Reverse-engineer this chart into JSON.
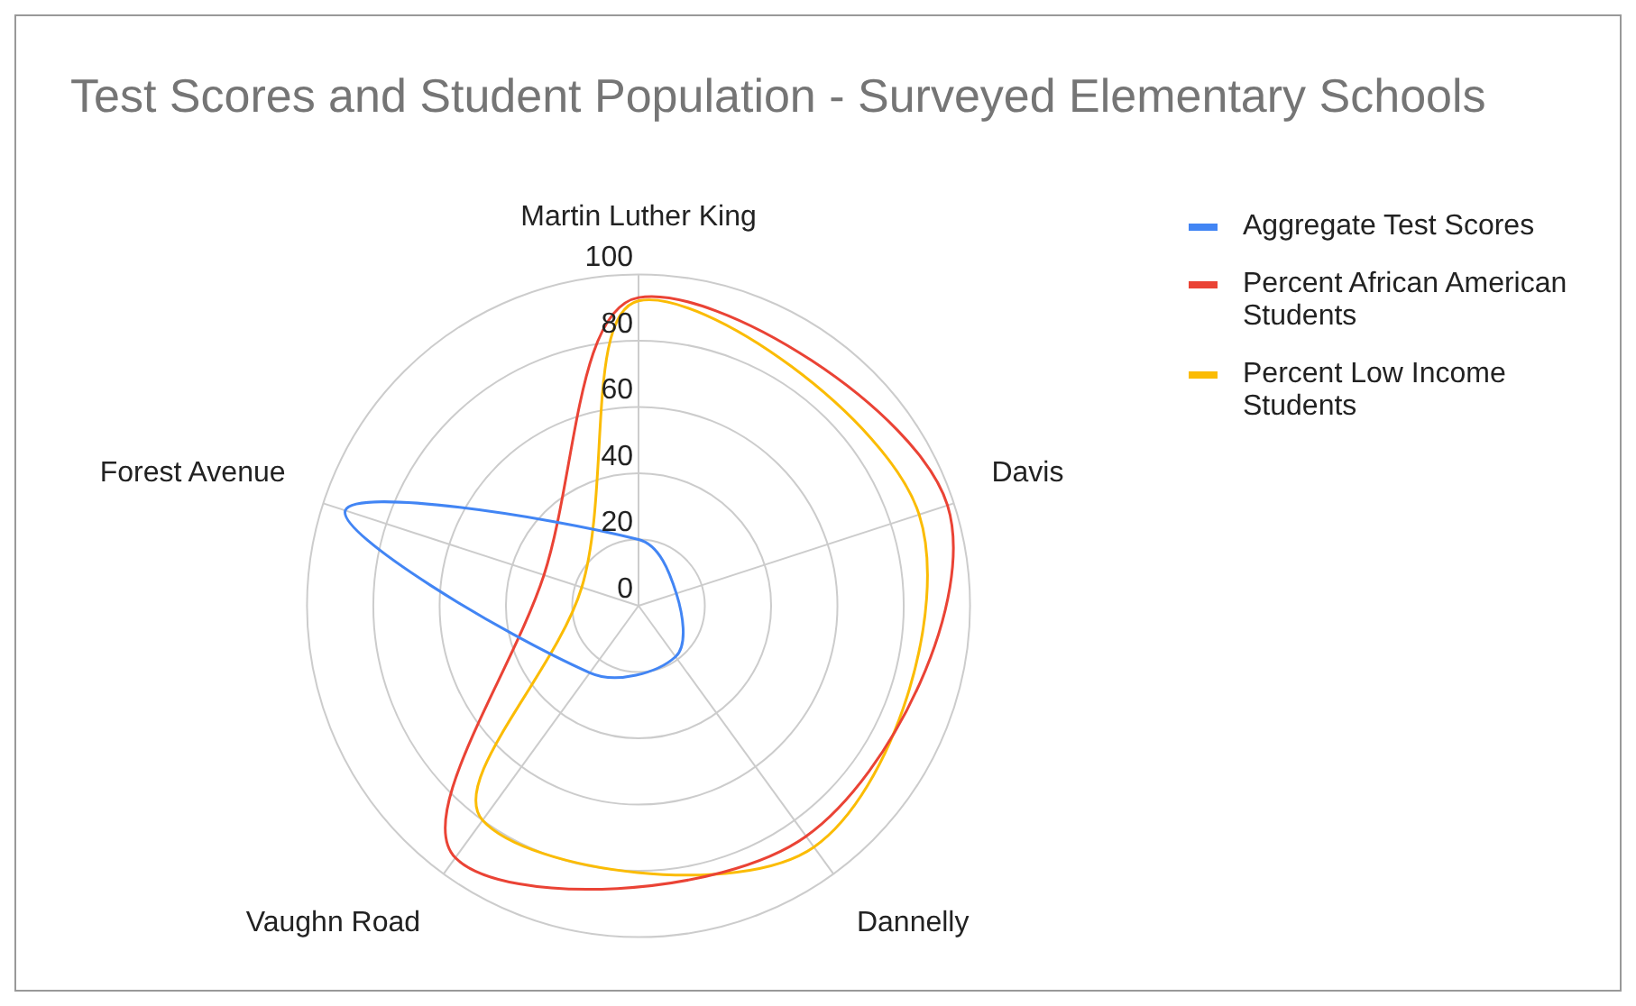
{
  "chart_data": {
    "type": "radar",
    "title": "Test Scores and Student Population - Surveyed Elementary Schools",
    "categories": [
      "Martin Luther King",
      "Davis",
      "Dannelly",
      "Vaughn Road",
      "Forest Avenue"
    ],
    "series": [
      {
        "name": "Aggregate Test Scores",
        "color": "#4285f4",
        "values": [
          20,
          12,
          19,
          25,
          93
        ]
      },
      {
        "name": "Percent African American Students",
        "color": "#ea4335",
        "values": [
          93,
          98,
          86,
          94,
          30
        ]
      },
      {
        "name": "Percent Low Income Students",
        "color": "#fbbc04",
        "values": [
          92,
          89,
          90,
          80,
          18
        ]
      }
    ],
    "ylim": [
      0,
      100
    ],
    "yticks": [
      0,
      20,
      40,
      60,
      80,
      100
    ],
    "grid": true,
    "legend": "top right",
    "marker": "none"
  }
}
